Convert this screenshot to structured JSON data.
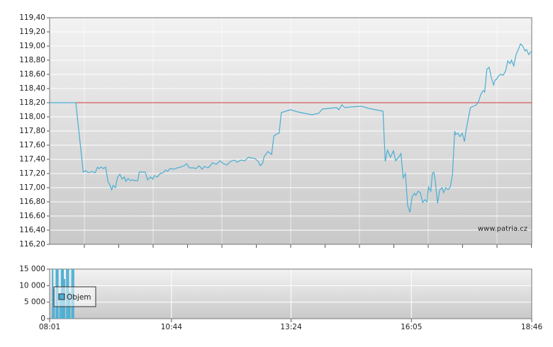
{
  "chart_data": [
    {
      "type": "line",
      "x": [
        "08:01",
        "08:36",
        "08:46",
        "08:49",
        "08:53",
        "08:58",
        "09:02",
        "09:05",
        "09:07",
        "09:10",
        "09:13",
        "09:16",
        "09:19",
        "09:22",
        "09:24",
        "09:26",
        "09:29",
        "09:32",
        "09:35",
        "09:38",
        "09:41",
        "09:43",
        "09:46",
        "09:49",
        "09:52",
        "09:55",
        "09:59",
        "10:01",
        "10:05",
        "10:09",
        "10:12",
        "10:16",
        "10:19",
        "10:21",
        "10:25",
        "10:29",
        "10:33",
        "10:36",
        "10:39",
        "10:42",
        "10:47",
        "10:52",
        "10:56",
        "11:01",
        "11:04",
        "11:08",
        "11:13",
        "11:17",
        "11:21",
        "11:25",
        "11:28",
        "11:33",
        "11:36",
        "11:39",
        "11:44",
        "11:49",
        "11:53",
        "11:58",
        "12:03",
        "12:08",
        "12:12",
        "12:17",
        "12:22",
        "12:27",
        "12:31",
        "12:36",
        "12:40",
        "12:43",
        "12:46",
        "12:48",
        "12:53",
        "12:58",
        "13:01",
        "13:05",
        "13:08",
        "13:11",
        "13:17",
        "13:23",
        "13:33",
        "13:42",
        "13:52",
        "14:01",
        "14:06",
        "14:16",
        "14:25",
        "14:28",
        "14:32",
        "14:36",
        "14:44",
        "14:58",
        "15:08",
        "15:17",
        "15:27",
        "15:30",
        "15:33",
        "15:37",
        "15:41",
        "15:44",
        "15:48",
        "15:51",
        "15:54",
        "15:57",
        "16:00",
        "16:03",
        "16:06",
        "16:09",
        "16:11",
        "16:14",
        "16:17",
        "16:20",
        "16:23",
        "16:26",
        "16:28",
        "16:31",
        "16:33",
        "16:35",
        "16:37",
        "16:40",
        "16:43",
        "16:46",
        "16:48",
        "16:51",
        "16:54",
        "16:57",
        "17:00",
        "17:03",
        "17:04",
        "17:07",
        "17:10",
        "17:13",
        "17:16",
        "17:18",
        "17:21",
        "17:24",
        "17:28",
        "17:32",
        "17:35",
        "17:38",
        "17:41",
        "17:43",
        "17:46",
        "17:49",
        "17:52",
        "17:55",
        "17:57",
        "17:59",
        "18:01",
        "18:04",
        "18:08",
        "18:11",
        "18:14",
        "18:17",
        "18:19",
        "18:22",
        "18:25",
        "18:28",
        "18:31",
        "18:34",
        "18:37",
        "18:39",
        "18:42",
        "18:46"
      ],
      "values": [
        118.2,
        118.2,
        117.22,
        117.24,
        117.21,
        117.23,
        117.21,
        117.29,
        117.27,
        117.29,
        117.27,
        117.29,
        117.09,
        117.03,
        116.97,
        117.03,
        117.0,
        117.15,
        117.19,
        117.12,
        117.15,
        117.09,
        117.13,
        117.1,
        117.11,
        117.1,
        117.1,
        117.22,
        117.22,
        117.22,
        117.11,
        117.15,
        117.12,
        117.17,
        117.15,
        117.2,
        117.21,
        117.25,
        117.23,
        117.27,
        117.26,
        117.28,
        117.29,
        117.31,
        117.34,
        117.28,
        117.28,
        117.27,
        117.31,
        117.26,
        117.3,
        117.28,
        117.31,
        117.35,
        117.33,
        117.38,
        117.34,
        117.32,
        117.37,
        117.39,
        117.36,
        117.39,
        117.38,
        117.43,
        117.42,
        117.41,
        117.37,
        117.31,
        117.35,
        117.44,
        117.51,
        117.47,
        117.73,
        117.76,
        117.77,
        118.06,
        118.08,
        118.1,
        118.07,
        118.05,
        118.03,
        118.05,
        118.11,
        118.12,
        118.13,
        118.1,
        118.17,
        118.13,
        118.14,
        118.15,
        118.12,
        118.1,
        118.08,
        117.37,
        117.53,
        117.43,
        117.52,
        117.38,
        117.43,
        117.48,
        117.14,
        117.2,
        116.75,
        116.65,
        116.87,
        116.92,
        116.89,
        116.95,
        116.93,
        116.79,
        116.83,
        116.8,
        117.01,
        116.95,
        117.2,
        117.22,
        117.09,
        116.78,
        116.97,
        117.0,
        116.93,
        117.0,
        116.97,
        117.01,
        117.18,
        117.8,
        117.75,
        117.77,
        117.72,
        117.77,
        117.65,
        117.8,
        117.97,
        118.13,
        118.15,
        118.17,
        118.22,
        118.32,
        118.37,
        118.35,
        118.67,
        118.7,
        118.55,
        118.45,
        118.52,
        118.53,
        118.57,
        118.6,
        118.59,
        118.65,
        118.79,
        118.75,
        118.8,
        118.72,
        118.88,
        118.95,
        119.03,
        119.0,
        118.93,
        118.95,
        118.88,
        118.93
      ],
      "color": "#4aaed3",
      "xlim": [
        "08:01",
        "18:46"
      ],
      "ylim": [
        116.2,
        119.4
      ],
      "yticks": [
        {
          "value": 116.2,
          "label": "116,20"
        },
        {
          "value": 116.4,
          "label": "116,40"
        },
        {
          "value": 116.6,
          "label": "116,60"
        },
        {
          "value": 116.8,
          "label": "116,80"
        },
        {
          "value": 117.0,
          "label": "117,00"
        },
        {
          "value": 117.2,
          "label": "117,20"
        },
        {
          "value": 117.4,
          "label": "117,40"
        },
        {
          "value": 117.6,
          "label": "117,60"
        },
        {
          "value": 117.8,
          "label": "117,80"
        },
        {
          "value": 118.0,
          "label": "118,00"
        },
        {
          "value": 118.2,
          "label": "118,20"
        },
        {
          "value": 118.4,
          "label": "118,40"
        },
        {
          "value": 118.6,
          "label": "118,60"
        },
        {
          "value": 118.8,
          "label": "118,80"
        },
        {
          "value": 119.0,
          "label": "119,00"
        },
        {
          "value": 119.2,
          "label": "119,20"
        },
        {
          "value": 119.4,
          "label": "119,40"
        }
      ],
      "reference_line": 118.2,
      "reference_color": "#d03a3a",
      "annotation": "www.patria.cz",
      "grid": true
    },
    {
      "type": "bar",
      "x": [
        "08:05",
        "08:07",
        "08:10",
        "08:12",
        "08:15",
        "08:17",
        "08:19",
        "08:21",
        "08:24",
        "08:26",
        "08:28",
        "08:31",
        "08:33"
      ],
      "series": [
        {
          "name": "Objem",
          "color": "#4aaed3",
          "values": [
            15000,
            9000,
            15000,
            15000,
            6000,
            15000,
            15000,
            12000,
            15000,
            15000,
            8000,
            15000,
            15000
          ]
        }
      ],
      "xlim": [
        "08:01",
        "18:46"
      ],
      "xticks": [
        "08:01",
        "10:44",
        "13:24",
        "16:05",
        "18:46"
      ],
      "ylim": [
        0,
        15000
      ],
      "yticks": [
        0,
        {
          "value": 5000,
          "label": "5 000"
        },
        {
          "value": 10000,
          "label": "10 000"
        },
        {
          "value": 15000,
          "label": "15 000"
        }
      ],
      "grid": true
    }
  ]
}
